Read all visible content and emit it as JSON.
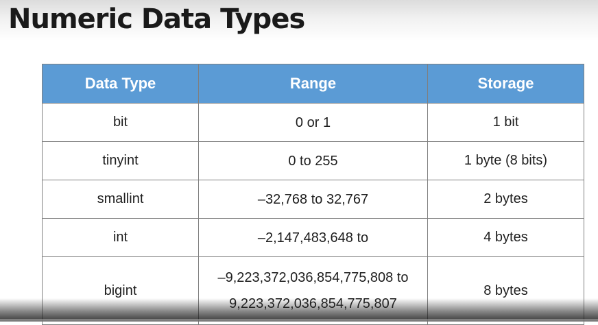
{
  "title": "Numeric Data Types",
  "table": {
    "headers": [
      "Data Type",
      "Range",
      "Storage"
    ],
    "rows": [
      {
        "type": "bit",
        "range": [
          "0 or 1"
        ],
        "storage": "1 bit"
      },
      {
        "type": "tinyint",
        "range": [
          "0 to 255"
        ],
        "storage": "1 byte (8 bits)"
      },
      {
        "type": "smallint",
        "range": [
          "–32,768 to 32,767"
        ],
        "storage": "2 bytes"
      },
      {
        "type": "int",
        "range": [
          "–2,147,483,648 to"
        ],
        "storage": "4 bytes"
      },
      {
        "type": "bigint",
        "range": [
          "–9,223,372,036,854,775,808 to",
          "9,223,372,036,854,775,807"
        ],
        "storage": "8 bytes"
      }
    ]
  },
  "colors": {
    "header_bg": "#5b9bd5",
    "header_text": "#ffffff",
    "border": "#7f7f7f"
  },
  "video_progress": 0.0
}
